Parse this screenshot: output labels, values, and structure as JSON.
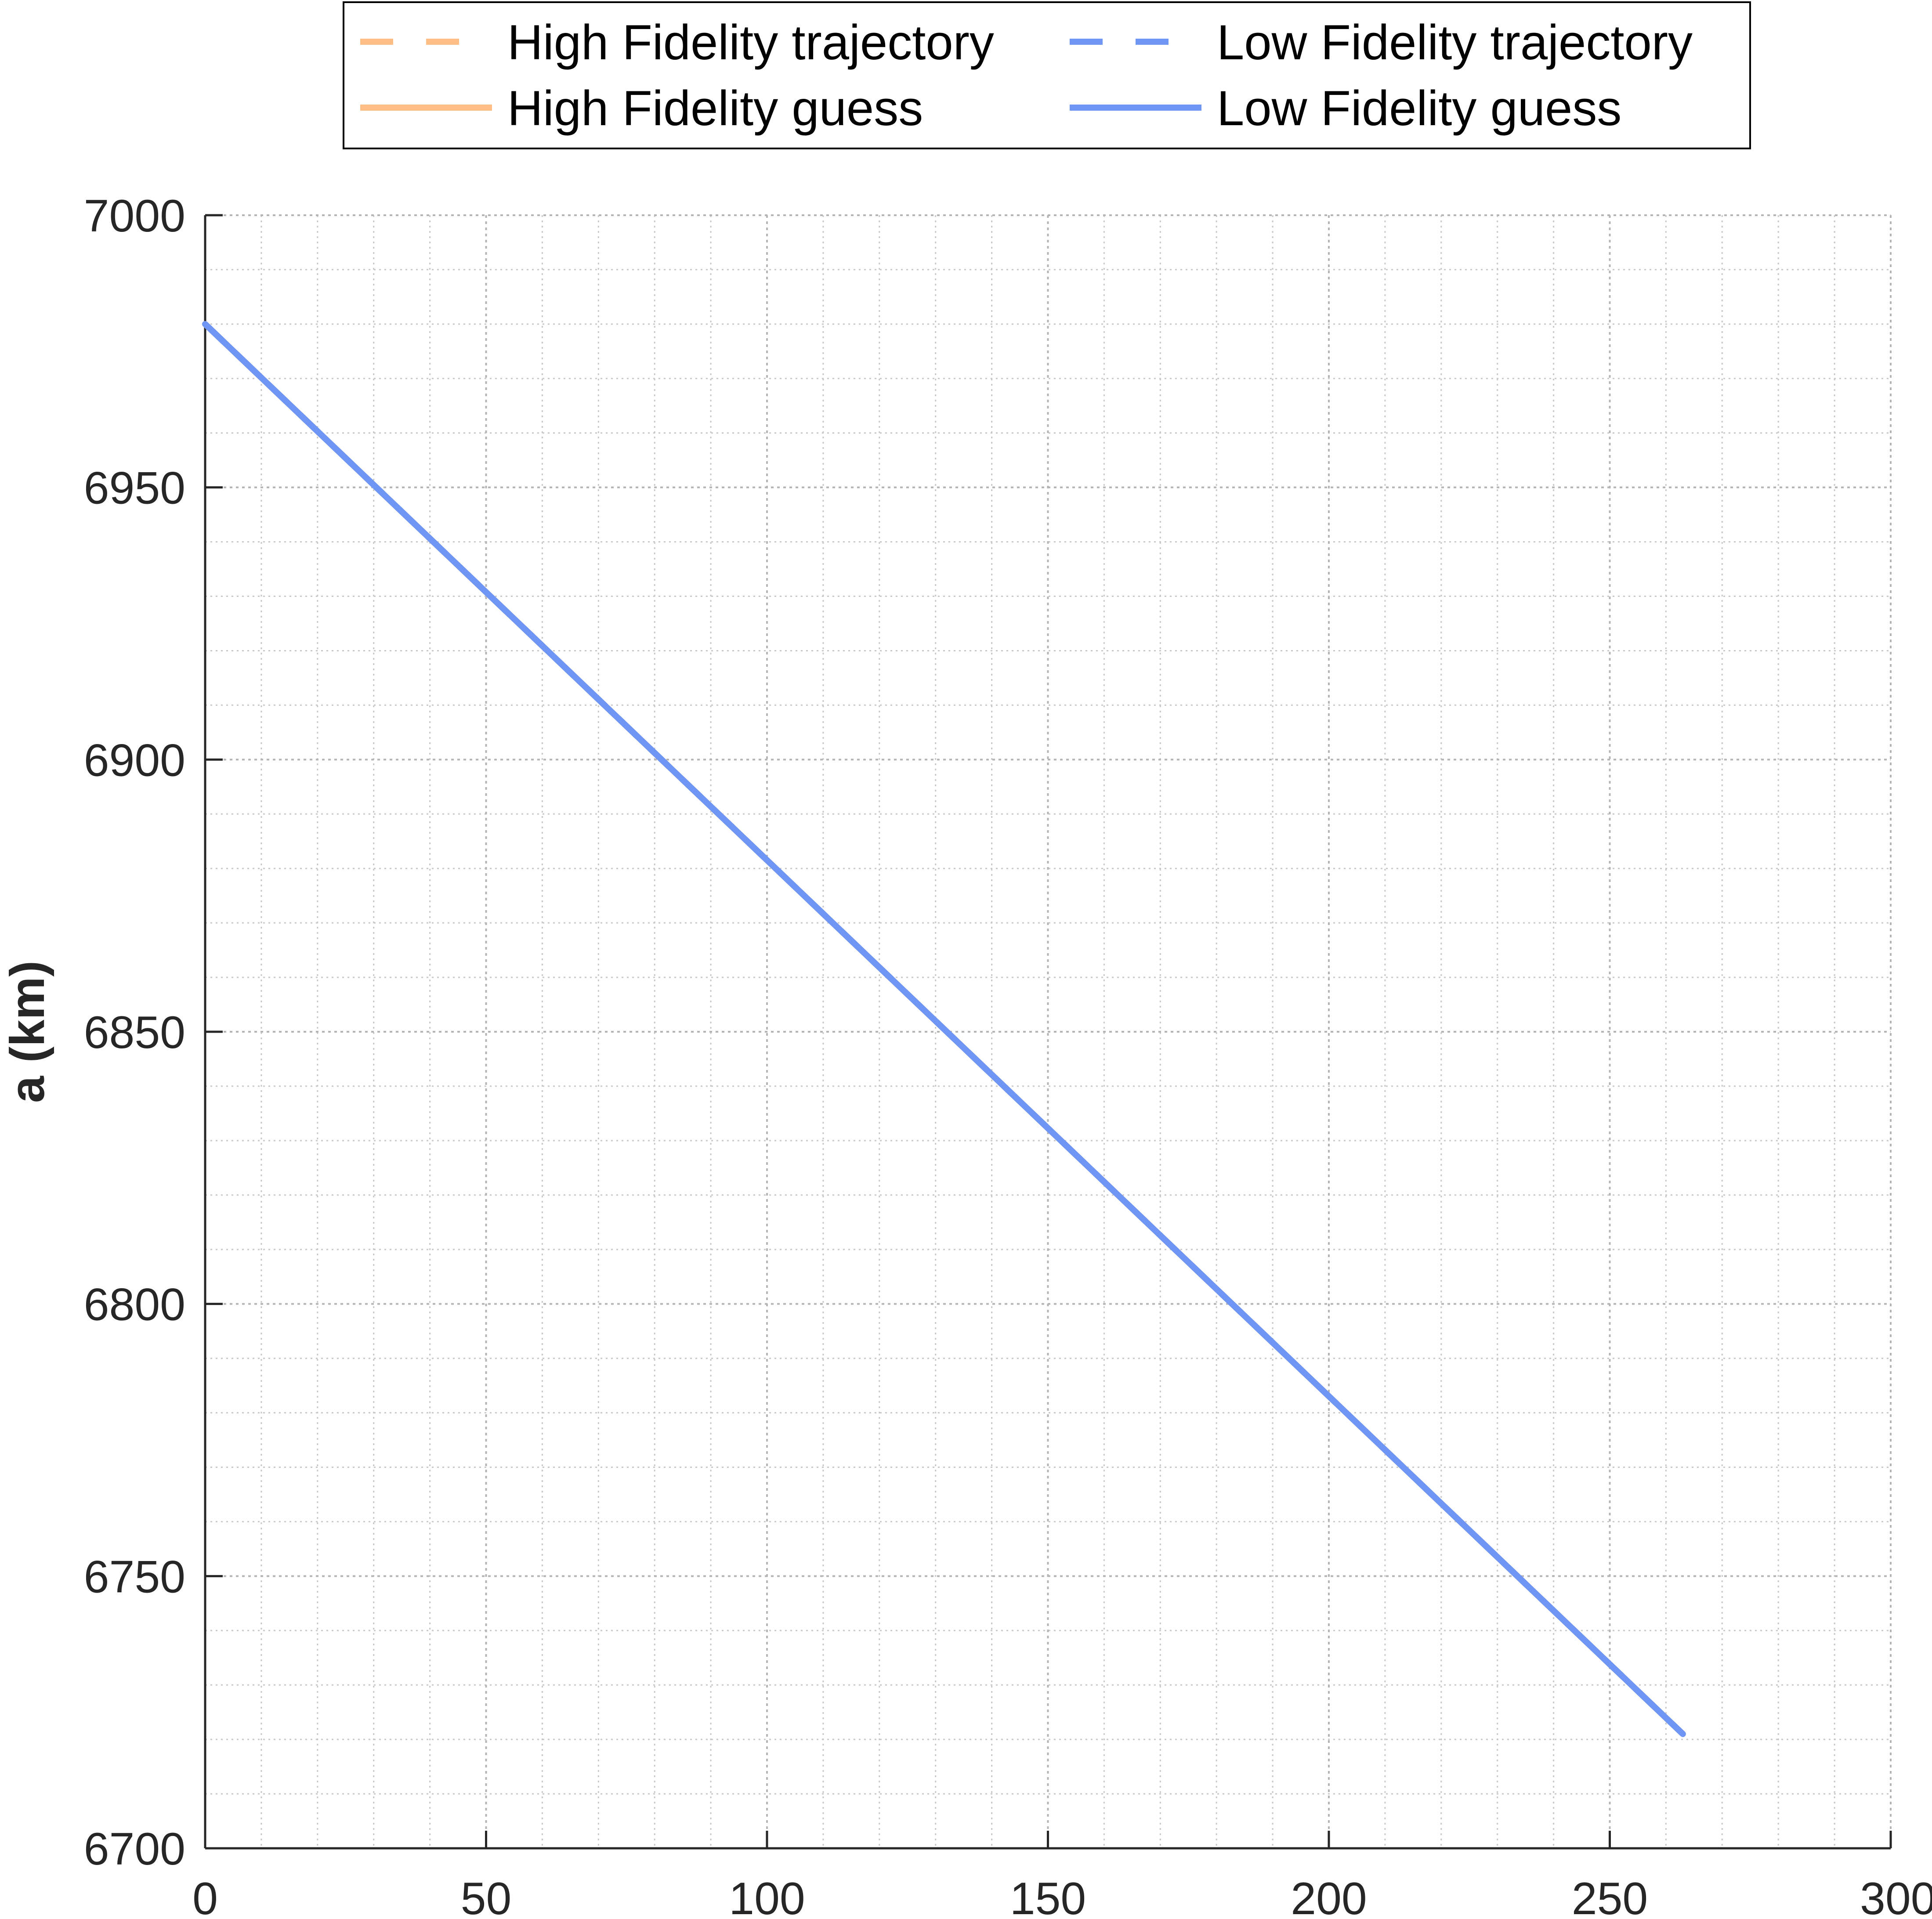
{
  "chart_data": {
    "type": "line",
    "xlabel": "",
    "ylabel": "a (km)",
    "xlim": [
      0,
      300
    ],
    "ylim": [
      6700,
      7000
    ],
    "x_ticks": [
      0,
      50,
      100,
      150,
      200,
      250,
      300
    ],
    "y_ticks": [
      6700,
      6750,
      6800,
      6850,
      6900,
      6950,
      7000
    ],
    "x_minor_step": 10,
    "y_minor_step": 10,
    "grid": true,
    "minor_grid": true,
    "legend_position": "top-outside",
    "legend_columns": 2,
    "series": [
      {
        "name": "High Fidelity trajectory",
        "style": "dashed",
        "color": "#FFBE86",
        "x": [
          0,
          263
        ],
        "y": [
          6980,
          6721
        ]
      },
      {
        "name": "Low Fidelity trajectory",
        "style": "dashed",
        "color": "#6F96F4",
        "x": [
          0,
          263
        ],
        "y": [
          6980,
          6721
        ]
      },
      {
        "name": "High Fidelity guess",
        "style": "solid",
        "color": "#FFBE86",
        "x": [
          0,
          263
        ],
        "y": [
          6980,
          6721
        ]
      },
      {
        "name": "Low Fidelity guess",
        "style": "solid",
        "color": "#6F96F4",
        "x": [
          0,
          263
        ],
        "y": [
          6980,
          6721
        ]
      }
    ]
  }
}
